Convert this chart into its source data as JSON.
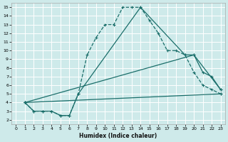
{
  "xlabel": "Humidex (Indice chaleur)",
  "background_color": "#ceeaea",
  "grid_color": "#ffffff",
  "line_color": "#1a6e6a",
  "xlim": [
    -0.5,
    23.5
  ],
  "ylim": [
    1.5,
    15.5
  ],
  "xticks": [
    0,
    1,
    2,
    3,
    4,
    5,
    6,
    7,
    8,
    9,
    10,
    11,
    12,
    13,
    14,
    15,
    16,
    17,
    18,
    19,
    20,
    21,
    22,
    23
  ],
  "yticks": [
    2,
    3,
    4,
    5,
    6,
    7,
    8,
    9,
    10,
    11,
    12,
    13,
    14,
    15
  ],
  "line_dotted": {
    "x": [
      1,
      2,
      3,
      4,
      5,
      6,
      7,
      8,
      9,
      10,
      11,
      12,
      13,
      14,
      15,
      16,
      17,
      18,
      19,
      20,
      21,
      22,
      23
    ],
    "y": [
      4,
      3,
      3,
      3,
      2.5,
      2.5,
      5,
      9.5,
      11.5,
      13,
      13,
      15,
      15,
      15,
      13.5,
      12,
      10,
      10,
      9.5,
      7.5,
      6,
      5.5,
      5
    ]
  },
  "line_solid_arch": {
    "x": [
      1,
      2,
      3,
      4,
      5,
      6,
      7,
      14,
      19,
      20,
      21,
      22,
      23
    ],
    "y": [
      4,
      3,
      3,
      3,
      2.5,
      2.5,
      5,
      15,
      9.5,
      9.5,
      7.5,
      7,
      5.5
    ]
  },
  "line_flat1": {
    "x": [
      1,
      23
    ],
    "y": [
      4,
      5
    ]
  },
  "line_flat2": {
    "x": [
      1,
      20,
      23
    ],
    "y": [
      4,
      9.5,
      5.5
    ]
  }
}
